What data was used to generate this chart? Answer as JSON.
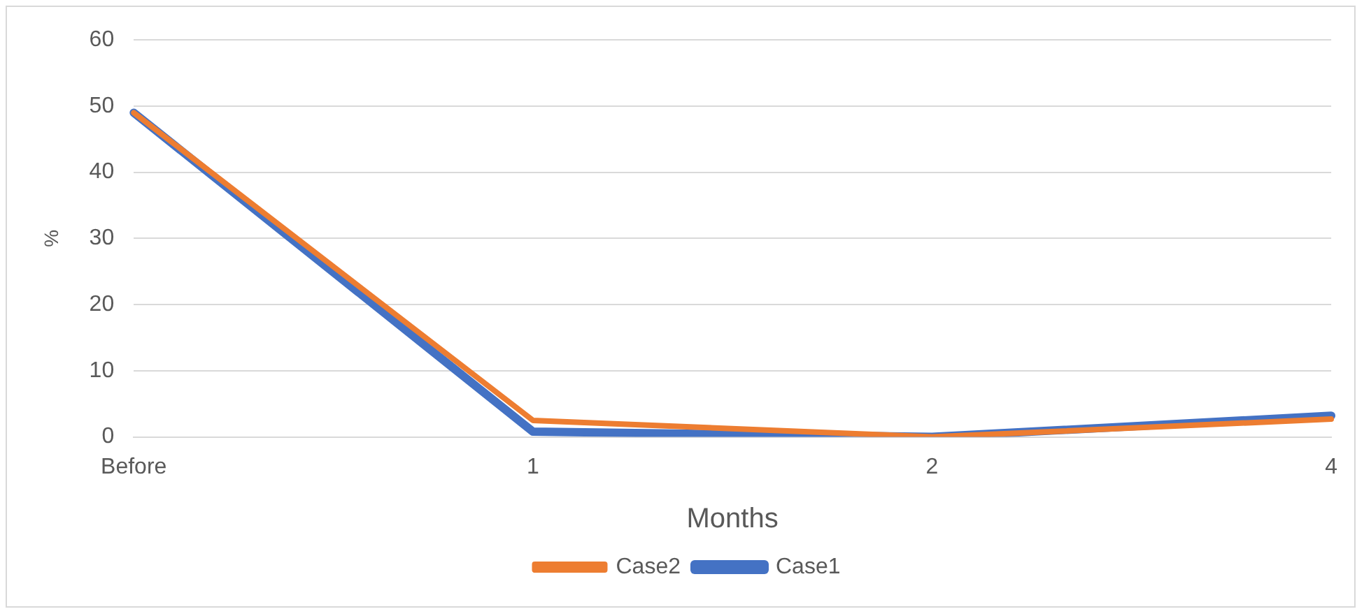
{
  "chart_data": {
    "type": "line",
    "xlabel": "Months",
    "ylabel": "%",
    "categories": [
      "Before",
      "1",
      "2",
      "4"
    ],
    "series": [
      {
        "name": "Case1",
        "color": "#4472c4",
        "values": [
          49,
          0.8,
          0,
          3.2
        ]
      },
      {
        "name": "Case2",
        "color": "#ed7d31",
        "values": [
          49,
          2.5,
          0,
          2.7
        ]
      }
    ],
    "ylim": [
      0,
      60
    ],
    "yticks": [
      0,
      10,
      20,
      30,
      40,
      50,
      60
    ],
    "grid": "y",
    "legend": "bottom",
    "marker": "none",
    "line_style": "solid"
  }
}
